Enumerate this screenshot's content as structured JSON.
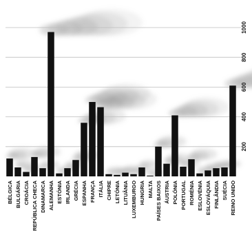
{
  "chart_data": {
    "type": "bar",
    "title": "",
    "xlabel": "",
    "ylabel": "",
    "ylim": [
      0,
      1000
    ],
    "yticks": [
      200,
      400,
      600,
      800,
      1000
    ],
    "grid": true,
    "colors": {
      "bar": "#111111",
      "grid": "#bdbdbd",
      "smoke": "#9a9a9a",
      "text": "#111111"
    },
    "categories": [
      "BÉLGICA",
      "BULGÁRIA",
      "CROÁCIA",
      "REPÚBLICA CHECA",
      "DINAMARCA",
      "ALEMANHA",
      "ESTÓNIA",
      "IRLANDA",
      "GRÉCIA",
      "ESPANHA",
      "FRANÇA",
      "ITÁLIA",
      "CHIPRE",
      "LETÓNIA",
      "LITUÂNIA",
      "LUXEMBURGO",
      "HUNGRIA",
      "MALTA",
      "PAÍSES BAIXOS",
      "ÁUSTRIA",
      "POLÓNIA",
      "PORTUGAL",
      "ROMÉNIA",
      "ESLOVÉNIA",
      "ESLOVÁQUIA",
      "FINLÂNDIA",
      "SUÉCIA",
      "REINO UNIDO"
    ],
    "values": [
      120,
      60,
      30,
      130,
      55,
      970,
      20,
      55,
      110,
      360,
      500,
      465,
      15,
      10,
      25,
      15,
      60,
      5,
      200,
      85,
      410,
      65,
      115,
      20,
      40,
      55,
      60,
      610
    ]
  }
}
